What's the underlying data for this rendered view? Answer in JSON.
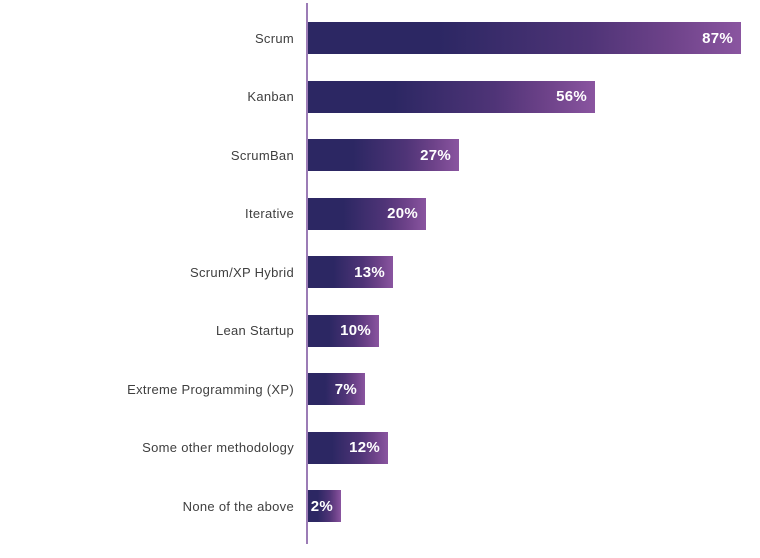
{
  "chart_data": {
    "type": "bar",
    "orientation": "horizontal",
    "title": "",
    "xlabel": "",
    "ylabel": "",
    "grid": false,
    "legend": false,
    "axis_line": "left-vertical",
    "categories": [
      "Scrum",
      "Kanban",
      "ScrumBan",
      "Iterative",
      "Scrum/XP Hybrid",
      "Lean Startup",
      "Extreme Programming (XP)",
      "Some other methodology",
      "None of the above"
    ],
    "values": [
      87,
      56,
      27,
      20,
      13,
      10,
      7,
      12,
      2
    ],
    "value_labels": [
      "87%",
      "56%",
      "27%",
      "20%",
      "13%",
      "10%",
      "7%",
      "12%",
      "2%"
    ],
    "value_label_position": "inside-bar-right",
    "xlim": [
      0,
      100
    ]
  },
  "colors": {
    "background": "#ffffff",
    "bar_gradient_start": "#2c2763",
    "bar_gradient_end": "#8a55a0",
    "axis_line": "#9c7cb6",
    "category_text": "#3f3f3f",
    "value_text": "#ffffff"
  }
}
